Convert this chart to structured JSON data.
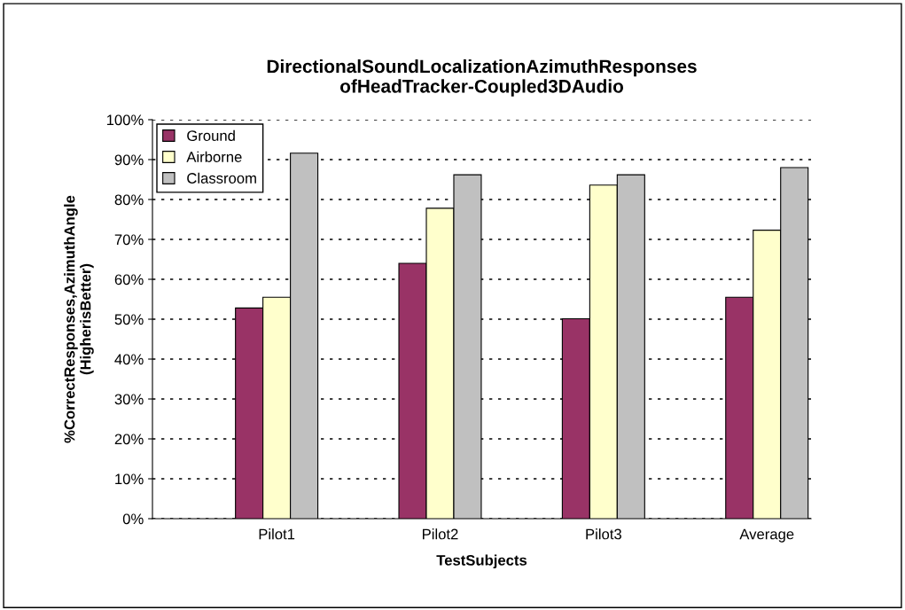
{
  "chart_data": {
    "type": "bar",
    "title": "DirectionalSoundLocalizationAzimuthResponses\nofHeadTracker-Coupled3DAudio",
    "xlabel": "TestSubjects",
    "ylabel": "%CorrectResponses,AzimuthAngle\n(HigherisBetter)",
    "categories": [
      "Pilot1",
      "Pilot2",
      "Pilot3",
      "Average"
    ],
    "series": [
      {
        "name": "Ground",
        "color": "#993366",
        "values": [
          52.8,
          64.0,
          50.1,
          55.5
        ]
      },
      {
        "name": "Airborne",
        "color": "#ffffcc",
        "values": [
          55.5,
          77.8,
          83.6,
          72.3
        ]
      },
      {
        "name": "Classroom",
        "color": "#c0c0c0",
        "values": [
          91.6,
          86.2,
          86.2,
          88.0
        ]
      }
    ],
    "ylim": [
      0,
      100
    ],
    "yticks": [
      {
        "value": 0,
        "label": "0%"
      },
      {
        "value": 10,
        "label": "10%"
      },
      {
        "value": 20,
        "label": "20%"
      },
      {
        "value": 30,
        "label": "30%"
      },
      {
        "value": 40,
        "label": "40%"
      },
      {
        "value": 50,
        "label": "50%"
      },
      {
        "value": 60,
        "label": "60%"
      },
      {
        "value": 70,
        "label": "70%"
      },
      {
        "value": 80,
        "label": "80%"
      },
      {
        "value": 90,
        "label": "90%"
      },
      {
        "value": 100,
        "label": "100%"
      }
    ],
    "grid": "y",
    "legend": "top left"
  }
}
